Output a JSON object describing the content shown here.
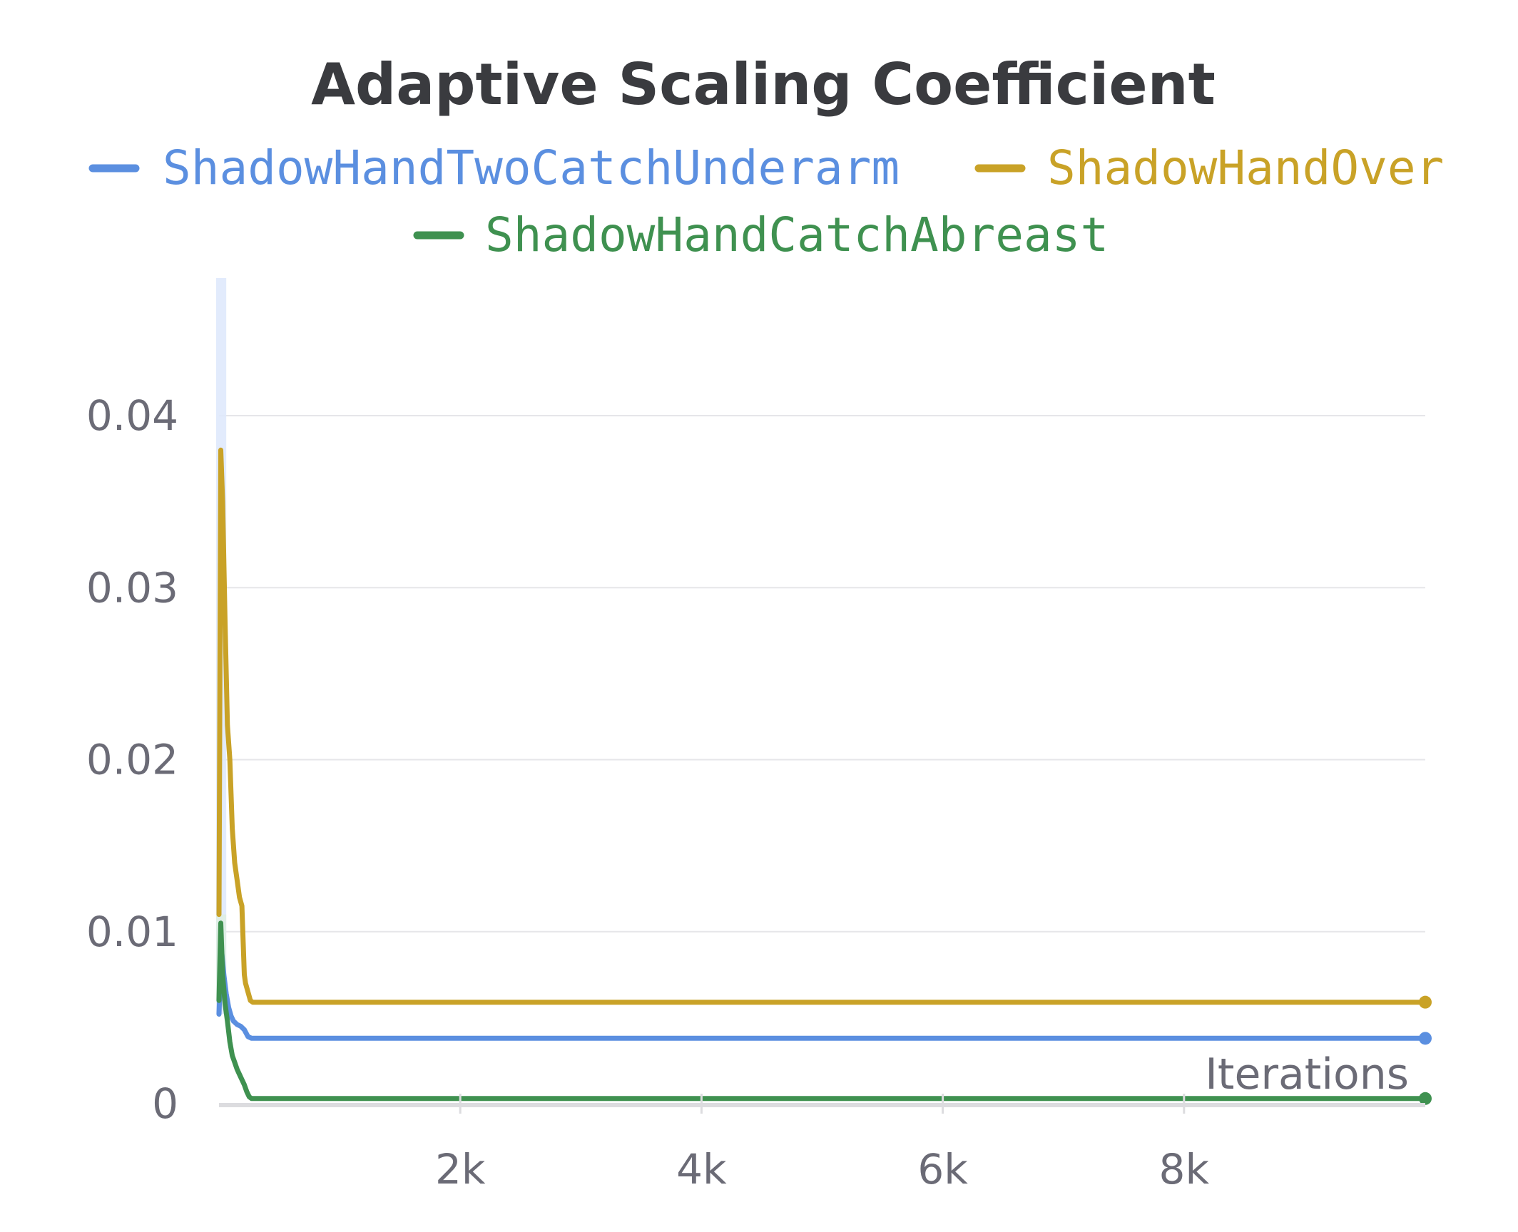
{
  "chart_data": {
    "type": "line",
    "title": "Adaptive Scaling Coefficient",
    "xlabel": "Iterations",
    "ylabel": "",
    "xlim": [
      0,
      10000
    ],
    "ylim": [
      0,
      0.048
    ],
    "grid": true,
    "legend_position": "top",
    "x_ticks": [
      {
        "value": 2000,
        "label": "2k"
      },
      {
        "value": 4000,
        "label": "4k"
      },
      {
        "value": 6000,
        "label": "6k"
      },
      {
        "value": 8000,
        "label": "8k"
      }
    ],
    "y_ticks": [
      {
        "value": 0,
        "label": "0"
      },
      {
        "value": 0.01,
        "label": "0.01"
      },
      {
        "value": 0.02,
        "label": "0.02"
      },
      {
        "value": 0.03,
        "label": "0.03"
      },
      {
        "value": 0.04,
        "label": "0.04"
      }
    ],
    "series": [
      {
        "name": "ShadowHandTwoCatchUnderarm",
        "color": "#5b8fe0",
        "band_color": "#dde8fb",
        "x": [
          0,
          20,
          40,
          60,
          80,
          100,
          120,
          150,
          180,
          210,
          240,
          270,
          300,
          1000,
          3000,
          5000,
          7000,
          9000,
          10000
        ],
        "y": [
          0.0052,
          0.009,
          0.0075,
          0.0064,
          0.0056,
          0.0051,
          0.0048,
          0.0046,
          0.0045,
          0.0043,
          0.0039,
          0.0038,
          0.0038,
          0.0038,
          0.0038,
          0.0038,
          0.0038,
          0.0038,
          0.0038
        ]
      },
      {
        "name": "ShadowHandOver",
        "color": "#c9a227",
        "band_color": "#faf5e2",
        "x": [
          0,
          15,
          30,
          50,
          70,
          90,
          110,
          130,
          150,
          170,
          190,
          210,
          220,
          240,
          260,
          280,
          300,
          400,
          1000,
          3000,
          5000,
          7000,
          9000,
          10000
        ],
        "y": [
          0.011,
          0.038,
          0.035,
          0.028,
          0.022,
          0.02,
          0.016,
          0.014,
          0.013,
          0.012,
          0.0115,
          0.0075,
          0.007,
          0.0065,
          0.006,
          0.0059,
          0.0059,
          0.0059,
          0.0059,
          0.0059,
          0.0059,
          0.0059,
          0.0059,
          0.0059
        ]
      },
      {
        "name": "ShadowHandCatchAbreast",
        "color": "#3f9150",
        "band_color": "#deefe2",
        "x": [
          0,
          15,
          30,
          50,
          70,
          90,
          110,
          130,
          150,
          170,
          190,
          210,
          230,
          250,
          270,
          300,
          1000,
          3000,
          5000,
          7000,
          9000,
          10000
        ],
        "y": [
          0.006,
          0.0105,
          0.0075,
          0.0058,
          0.0048,
          0.0036,
          0.0028,
          0.0024,
          0.002,
          0.0017,
          0.0014,
          0.0011,
          0.0007,
          0.0004,
          0.0003,
          0.0003,
          0.0003,
          0.0003,
          0.0003,
          0.0003,
          0.0003,
          0.0003
        ]
      }
    ]
  }
}
